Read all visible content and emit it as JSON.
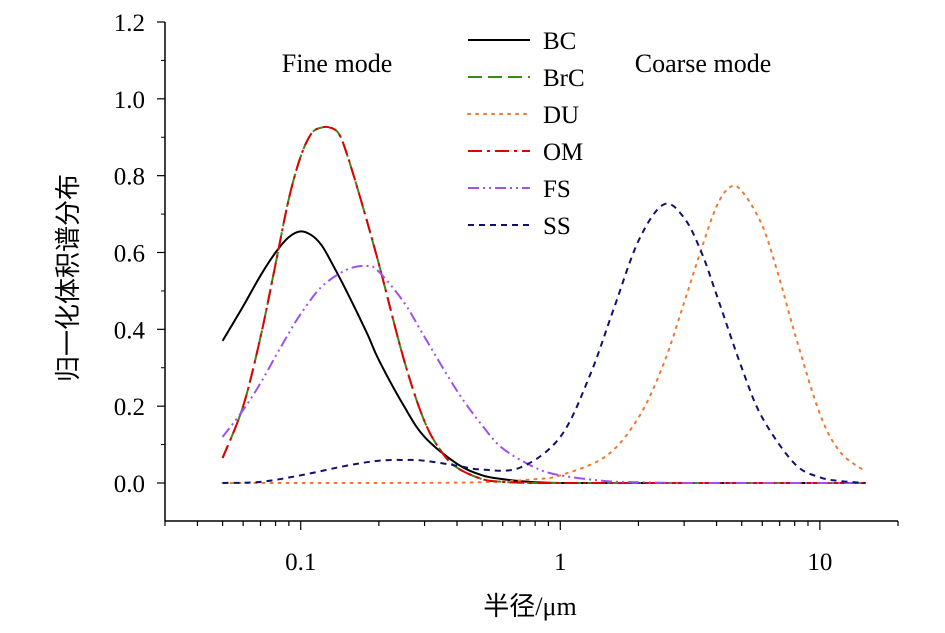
{
  "chart_data": {
    "type": "line",
    "title": "",
    "xlabel": "半径/μm",
    "ylabel": "归一化体积谱分布",
    "xscale": "log",
    "xlim": [
      0.03,
      20
    ],
    "ylim": [
      -0.1,
      1.2
    ],
    "grid": false,
    "legend_position": "top-center",
    "x_ticks": [
      {
        "value": 0.1,
        "label": "0.1"
      },
      {
        "value": 1,
        "label": "1"
      },
      {
        "value": 10,
        "label": "10"
      }
    ],
    "y_ticks": [
      {
        "value": 0.0,
        "label": "0.0"
      },
      {
        "value": 0.2,
        "label": "0.2"
      },
      {
        "value": 0.4,
        "label": "0.4"
      },
      {
        "value": 0.6,
        "label": "0.6"
      },
      {
        "value": 0.8,
        "label": "0.8"
      },
      {
        "value": 1.0,
        "label": "1.0"
      },
      {
        "value": 1.2,
        "label": "1.2"
      }
    ],
    "annotations": [
      "Fine mode",
      "Coarse mode"
    ],
    "series": [
      {
        "name": "BC",
        "color": "#000000",
        "dash": "solid",
        "x": [
          0.05,
          0.06,
          0.07,
          0.08,
          0.09,
          0.1,
          0.11,
          0.12,
          0.13,
          0.15,
          0.18,
          0.2,
          0.25,
          0.3,
          0.4,
          0.5,
          0.6,
          0.7,
          0.8,
          1.0,
          1.5,
          2,
          5,
          10,
          15
        ],
        "y": [
          0.37,
          0.46,
          0.54,
          0.6,
          0.64,
          0.655,
          0.645,
          0.62,
          0.58,
          0.5,
          0.39,
          0.32,
          0.2,
          0.12,
          0.05,
          0.02,
          0.01,
          0.005,
          0.002,
          0.0,
          0.0,
          0.0,
          0.0,
          0.0,
          0.0
        ]
      },
      {
        "name": "BrC",
        "color": "#3a8a1a",
        "dash": "long-dash",
        "x": [
          0.05,
          0.06,
          0.07,
          0.08,
          0.09,
          0.1,
          0.11,
          0.12,
          0.13,
          0.14,
          0.15,
          0.17,
          0.2,
          0.25,
          0.3,
          0.35,
          0.4,
          0.5,
          0.6,
          0.7,
          0.8,
          1.0,
          1.5,
          2,
          5,
          10,
          15
        ],
        "y": [
          0.065,
          0.2,
          0.38,
          0.57,
          0.74,
          0.85,
          0.91,
          0.925,
          0.925,
          0.91,
          0.86,
          0.74,
          0.57,
          0.32,
          0.16,
          0.08,
          0.04,
          0.01,
          0.003,
          0.001,
          0.0,
          0.0,
          0.0,
          0.0,
          0.0,
          0.0,
          0.0
        ]
      },
      {
        "name": "DU",
        "color": "#f07830",
        "dash": "dotted",
        "x": [
          0.05,
          0.1,
          0.2,
          0.5,
          0.8,
          1.0,
          1.5,
          2.0,
          2.5,
          3.0,
          3.5,
          4.0,
          4.5,
          5.0,
          6.0,
          7.0,
          8.0,
          10.0,
          12.0,
          15.0
        ],
        "y": [
          0.0,
          0.0,
          0.0,
          0.002,
          0.01,
          0.02,
          0.07,
          0.17,
          0.31,
          0.47,
          0.61,
          0.72,
          0.77,
          0.76,
          0.67,
          0.53,
          0.39,
          0.18,
          0.08,
          0.03
        ]
      },
      {
        "name": "OM",
        "color": "#e00000",
        "dash": "dash-dot",
        "x": [
          0.05,
          0.06,
          0.07,
          0.08,
          0.09,
          0.1,
          0.11,
          0.12,
          0.13,
          0.14,
          0.15,
          0.17,
          0.2,
          0.25,
          0.3,
          0.35,
          0.4,
          0.5,
          0.6,
          0.7,
          0.8,
          1.0,
          1.5,
          2,
          5,
          10,
          15
        ],
        "y": [
          0.065,
          0.2,
          0.38,
          0.57,
          0.74,
          0.85,
          0.91,
          0.925,
          0.925,
          0.91,
          0.86,
          0.74,
          0.57,
          0.32,
          0.16,
          0.08,
          0.04,
          0.01,
          0.003,
          0.001,
          0.0,
          0.0,
          0.0,
          0.0,
          0.0,
          0.0,
          0.0
        ]
      },
      {
        "name": "FS",
        "color": "#a050f0",
        "dash": "dash-dot-dot",
        "x": [
          0.05,
          0.06,
          0.07,
          0.08,
          0.09,
          0.1,
          0.12,
          0.15,
          0.18,
          0.2,
          0.25,
          0.3,
          0.4,
          0.5,
          0.6,
          0.8,
          1.0,
          1.5,
          2.0,
          3.0,
          5.0,
          10,
          15
        ],
        "y": [
          0.12,
          0.19,
          0.26,
          0.33,
          0.39,
          0.44,
          0.51,
          0.555,
          0.565,
          0.55,
          0.47,
          0.38,
          0.24,
          0.15,
          0.09,
          0.04,
          0.02,
          0.005,
          0.002,
          0.0,
          0.0,
          0.0,
          0.0
        ]
      },
      {
        "name": "SS",
        "color": "#101070",
        "dash": "short-dash",
        "x": [
          0.05,
          0.07,
          0.1,
          0.15,
          0.2,
          0.25,
          0.3,
          0.4,
          0.5,
          0.7,
          1.0,
          1.3,
          1.6,
          2.0,
          2.5,
          3.0,
          3.5,
          4.0,
          5.0,
          6.0,
          8.0,
          10.0,
          12.0,
          15.0
        ],
        "y": [
          0.0,
          0.003,
          0.02,
          0.045,
          0.058,
          0.06,
          0.058,
          0.045,
          0.035,
          0.04,
          0.12,
          0.28,
          0.45,
          0.63,
          0.725,
          0.69,
          0.6,
          0.49,
          0.3,
          0.17,
          0.05,
          0.015,
          0.005,
          0.0
        ]
      }
    ]
  }
}
